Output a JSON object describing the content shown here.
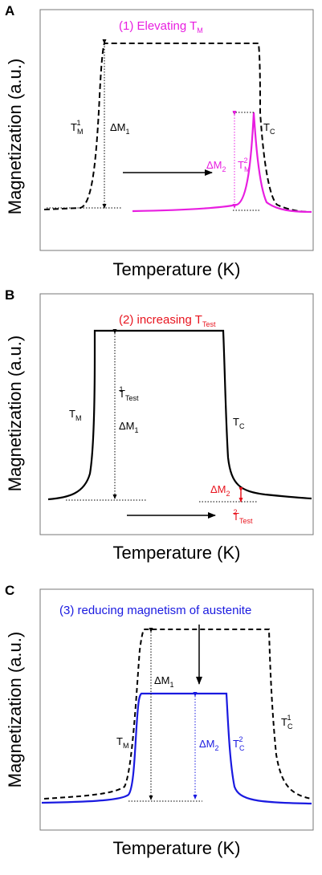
{
  "panels": [
    {
      "letter": "A",
      "caption": "(1) Elevating T",
      "caption_sub": "M",
      "caption_color": "#e81ee0",
      "ylabel": "Magnetization (a.u.)",
      "xlabel": "Temperature (K)",
      "labels": {
        "tm1_base": "T",
        "tm1_sub": "M",
        "tm1_sup": "1",
        "dm1_base": "ΔM",
        "dm1_sub": "1",
        "dm2_base": "ΔM",
        "dm2_sub": "2",
        "tm2_base": "T",
        "tm2_sub": "M",
        "tm2_sup": "2",
        "tc_base": "T",
        "tc_sub": "C"
      }
    },
    {
      "letter": "B",
      "caption": "(2) increasing T",
      "caption_sub": "Test",
      "caption_color": "#e8141e",
      "ylabel": "Magnetization (a.u.)",
      "xlabel": "Temperature (K)",
      "labels": {
        "tm_base": "T",
        "tm_sub": "M",
        "ttest1_base": "T",
        "ttest1_sub": "Test",
        "ttest1_sup": "1",
        "dm1_base": "ΔM",
        "dm1_sub": "1",
        "tc_base": "T",
        "tc_sub": "C",
        "dm2_base": "ΔM",
        "dm2_sub": "2",
        "ttest2_base": "T",
        "ttest2_sub": "Test",
        "ttest2_sup": "2"
      }
    },
    {
      "letter": "C",
      "caption": "(3) reducing magnetism of austenite",
      "caption_color": "#1a1ae0",
      "ylabel": "Magnetization (a.u.)",
      "xlabel": "Temperature (K)",
      "labels": {
        "dm1_base": "ΔM",
        "dm1_sub": "1",
        "tm_base": "T",
        "tm_sub": "M",
        "dm2_base": "ΔM",
        "dm2_sub": "2",
        "tc2_base": "T",
        "tc2_sub": "C",
        "tc2_sup": "2",
        "tc1_base": "T",
        "tc1_sub": "C",
        "tc1_sup": "1"
      }
    }
  ],
  "colors": {
    "magenta": "#e81ee0",
    "red": "#e8141e",
    "blue": "#1a1ae0",
    "black": "#000000"
  }
}
